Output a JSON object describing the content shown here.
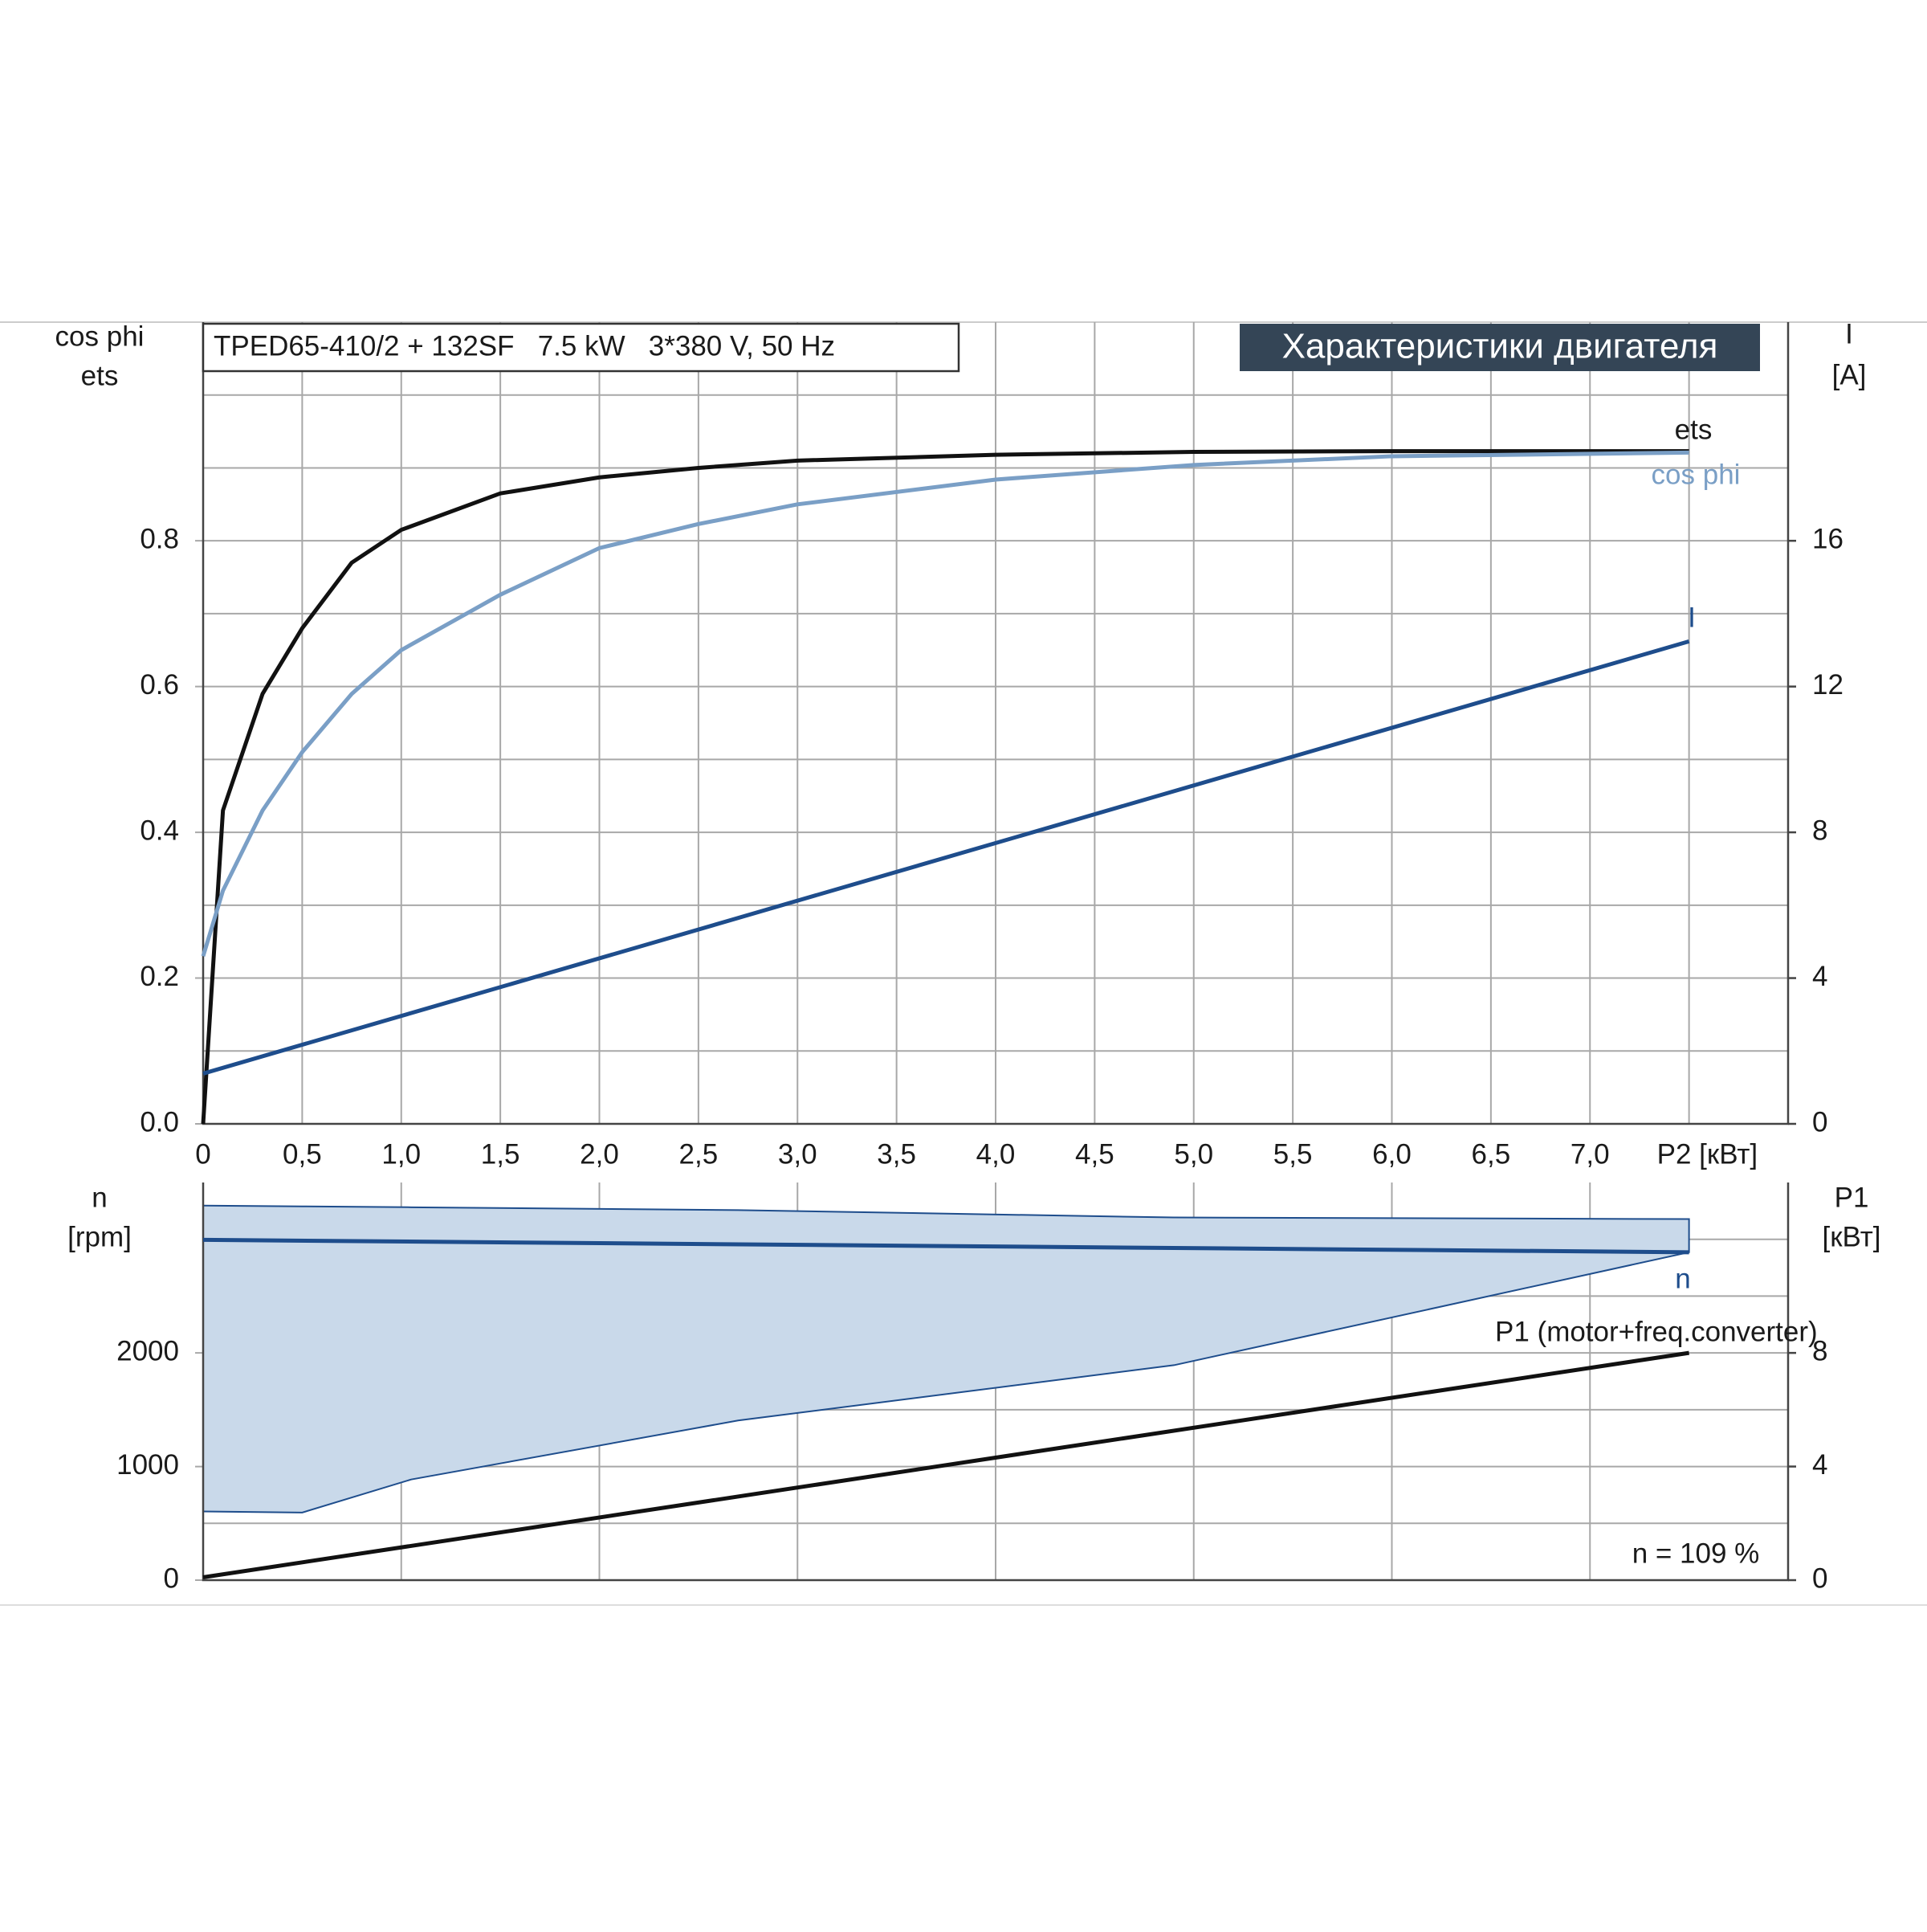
{
  "chart_data": [
    {
      "type": "line",
      "title": "TPED65-410/2 + 132SF   7.5 kW   3*380 V, 50 Hz",
      "subtitle": "Характеристики двигателя",
      "y_label": [
        "cos phi",
        "ets"
      ],
      "y2_label": [
        "I",
        "[A]"
      ],
      "xlim": [
        0,
        8
      ],
      "xticks": [
        0,
        {
          "value": 0.5,
          "label": "0,5"
        },
        {
          "value": 1,
          "label": "1,0"
        },
        {
          "value": 1.5,
          "label": "1,5"
        },
        {
          "value": 2,
          "label": "2,0"
        },
        {
          "value": 2.5,
          "label": "2,5"
        },
        {
          "value": 3,
          "label": "3,0"
        },
        {
          "value": 3.5,
          "label": "3,5"
        },
        {
          "value": 4,
          "label": "4,0"
        },
        {
          "value": 4.5,
          "label": "4,5"
        },
        {
          "value": 5,
          "label": "5,0"
        },
        {
          "value": 5.5,
          "label": "5,5"
        },
        {
          "value": 6,
          "label": "6,0"
        },
        {
          "value": 6.5,
          "label": "6,5"
        },
        {
          "value": 7,
          "label": "7,0"
        },
        {
          "value": 7.5,
          "label": "P2 [кВт]"
        }
      ],
      "ylim": [
        0,
        1.1
      ],
      "yticks": [
        {
          "value": 0,
          "label": "0.0"
        },
        0.2,
        0.4,
        0.6,
        0.8
      ],
      "ygrid": [
        0.1,
        0.3,
        0.5,
        0.7,
        0.9,
        1.0
      ],
      "y2lim": [
        0,
        22
      ],
      "y2ticks": [
        0,
        4,
        8,
        12,
        16
      ],
      "grid": true,
      "series": [
        {
          "name": "ets",
          "color": "#111111",
          "x": [
            0,
            0.1,
            0.3,
            0.5,
            0.75,
            1.0,
            1.5,
            2.0,
            2.5,
            3.0,
            4.0,
            5.0,
            6.0,
            7.5
          ],
          "values": [
            0,
            0.43,
            0.59,
            0.68,
            0.77,
            0.815,
            0.865,
            0.887,
            0.9,
            0.91,
            0.918,
            0.922,
            0.923,
            0.923
          ]
        },
        {
          "name": "cos phi",
          "color": "#7a9fc6",
          "x": [
            0,
            0.1,
            0.3,
            0.5,
            0.75,
            1.0,
            1.5,
            2.0,
            2.5,
            3.0,
            4.0,
            5.0,
            6.0,
            7.5
          ],
          "values": [
            0.23,
            0.32,
            0.43,
            0.51,
            0.59,
            0.65,
            0.726,
            0.79,
            0.823,
            0.85,
            0.884,
            0.904,
            0.916,
            0.921
          ]
        },
        {
          "name": "I",
          "color": "#1e4d8c",
          "axis": "y2",
          "x": [
            0,
            7.5
          ],
          "values": [
            1.38,
            13.24
          ]
        }
      ]
    },
    {
      "type": "line",
      "y_label": [
        "n",
        "[rpm]"
      ],
      "y2_label": [
        "P1",
        "[кВт]"
      ],
      "annotation": "n = 109 %",
      "xlim": [
        0,
        8
      ],
      "xgrid": [
        1,
        2,
        3,
        4,
        5,
        6,
        7
      ],
      "ylim": [
        0,
        3500
      ],
      "yticks": [
        0,
        1000,
        2000
      ],
      "ygrid": [
        500,
        1500,
        2500,
        3000
      ],
      "y2lim": [
        0,
        14
      ],
      "y2ticks": [
        0,
        4,
        8
      ],
      "grid": true,
      "band": {
        "color": "#c9d9ea",
        "x": [
          0,
          0.5,
          1.05,
          2.7,
          4.9,
          7.5
        ],
        "upper": [
          3297,
          3290,
          3282,
          3257,
          3192,
          3178
        ],
        "lower": [
          605,
          595,
          886,
          1405,
          1892,
          2886
        ]
      },
      "series": [
        {
          "name": "n",
          "color": "#1e4d8c",
          "x": [
            0,
            7.5
          ],
          "values": [
            2995,
            2886
          ]
        },
        {
          "name": "P1 (motor+freq.converter)",
          "color": "#111111",
          "axis": "y2",
          "x": [
            0,
            7.5
          ],
          "values": [
            0.1,
            8.0
          ]
        }
      ]
    }
  ]
}
